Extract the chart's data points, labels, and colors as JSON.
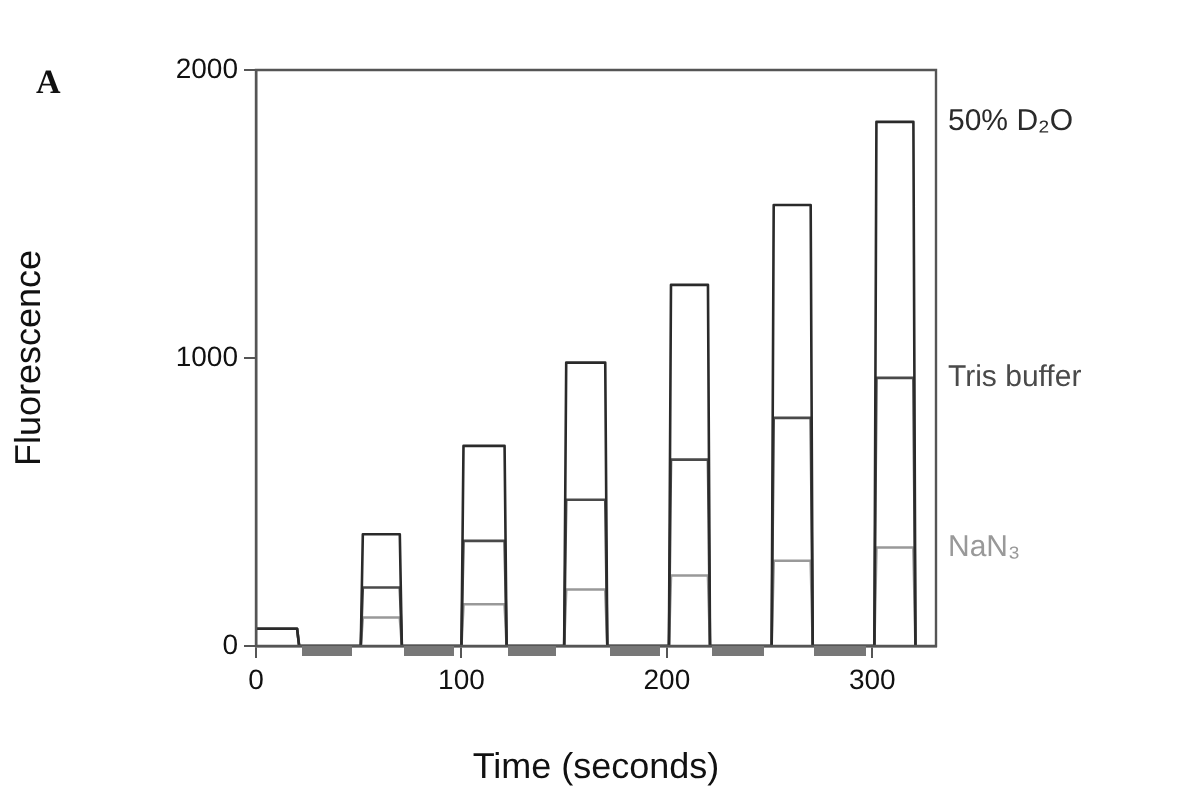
{
  "chart_data": {
    "type": "line",
    "xlabel": "Time (seconds)",
    "ylabel": "Fluorescence",
    "annotations": [
      "A"
    ],
    "x": [
      0,
      20,
      21,
      51,
      52,
      70,
      71,
      100,
      101,
      121,
      122,
      150,
      151,
      170,
      171,
      201,
      202,
      220,
      221,
      251,
      252,
      270,
      271,
      301,
      302,
      320,
      321
    ],
    "series": [
      {
        "name": "50% D₂O",
        "color": "#2a2a2a",
        "values": [
          60,
          60,
          0,
          0,
          388,
          388,
          0,
          0,
          695,
          695,
          0,
          0,
          984,
          984,
          0,
          0,
          1254,
          1254,
          0,
          0,
          1531,
          1531,
          0,
          0,
          1820,
          1820,
          0
        ]
      },
      {
        "name": "Tris buffer",
        "color": "#4a4a4a",
        "values": [
          60,
          60,
          0,
          0,
          203,
          203,
          0,
          0,
          365,
          365,
          0,
          0,
          508,
          508,
          0,
          0,
          647,
          647,
          0,
          0,
          792,
          792,
          0,
          0,
          931,
          931,
          0
        ]
      },
      {
        "name": "NaN₃",
        "color": "#999999",
        "values": [
          60,
          60,
          0,
          0,
          99,
          99,
          0,
          0,
          145,
          145,
          0,
          0,
          196,
          196,
          0,
          0,
          245,
          245,
          0,
          0,
          296,
          296,
          0,
          0,
          342,
          342,
          0
        ]
      }
    ],
    "xlim": [
      0,
      331
    ],
    "xticks": [
      0,
      100,
      200,
      300
    ],
    "ylim": [
      0,
      2000
    ],
    "yticks": [
      0,
      1000,
      2000
    ],
    "grid": false,
    "legend": false,
    "marker": "none",
    "line_style": "solid"
  }
}
